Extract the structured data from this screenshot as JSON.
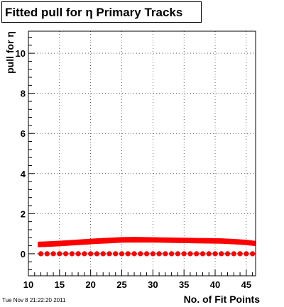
{
  "header": {
    "title": "Fitted pull for  η Primary Tracks"
  },
  "footer": {
    "date": "Tue Nov  8 21:22:20 2011"
  },
  "chart_data": {
    "type": "scatter",
    "title": "Fitted pull for  η Primary Tracks",
    "xlabel": "No. of Fit Points",
    "ylabel": "pull for η",
    "xlim": [
      10,
      46.5
    ],
    "ylim": [
      -1.1,
      11.1
    ],
    "xticks": [
      10,
      15,
      20,
      25,
      30,
      35,
      40,
      45
    ],
    "yticks": [
      0,
      2,
      4,
      6,
      8,
      10
    ],
    "grid": true,
    "colors": {
      "series": "#ff0000",
      "marker": "#ff0000"
    },
    "band": {
      "x": [
        11.5,
        13,
        15,
        17,
        19,
        21,
        23,
        25,
        27,
        29,
        31,
        33,
        35,
        37,
        39,
        41,
        43,
        45,
        46.5
      ],
      "lower": [
        0.32,
        0.34,
        0.37,
        0.41,
        0.45,
        0.49,
        0.52,
        0.55,
        0.56,
        0.56,
        0.55,
        0.54,
        0.53,
        0.52,
        0.51,
        0.5,
        0.47,
        0.43,
        0.38
      ],
      "upper": [
        0.6,
        0.62,
        0.65,
        0.69,
        0.73,
        0.77,
        0.8,
        0.83,
        0.84,
        0.83,
        0.82,
        0.81,
        0.8,
        0.79,
        0.78,
        0.77,
        0.74,
        0.7,
        0.64
      ]
    },
    "series": [
      {
        "x": [
          12,
          13,
          14,
          15,
          16,
          17,
          18,
          19,
          20,
          21,
          22,
          23,
          24,
          25,
          26,
          27,
          28,
          29,
          30,
          31,
          32,
          33,
          34,
          35,
          36,
          37,
          38,
          39,
          40,
          41,
          42,
          43,
          44,
          45,
          46
        ],
        "y": [
          0,
          0,
          0,
          0,
          0,
          0,
          0,
          0,
          0,
          0,
          0,
          0,
          0,
          0,
          0,
          0,
          0,
          0,
          0,
          0,
          0,
          0,
          0,
          0,
          0,
          0,
          0,
          0,
          0,
          0,
          0,
          0,
          0,
          0,
          0
        ]
      }
    ]
  }
}
